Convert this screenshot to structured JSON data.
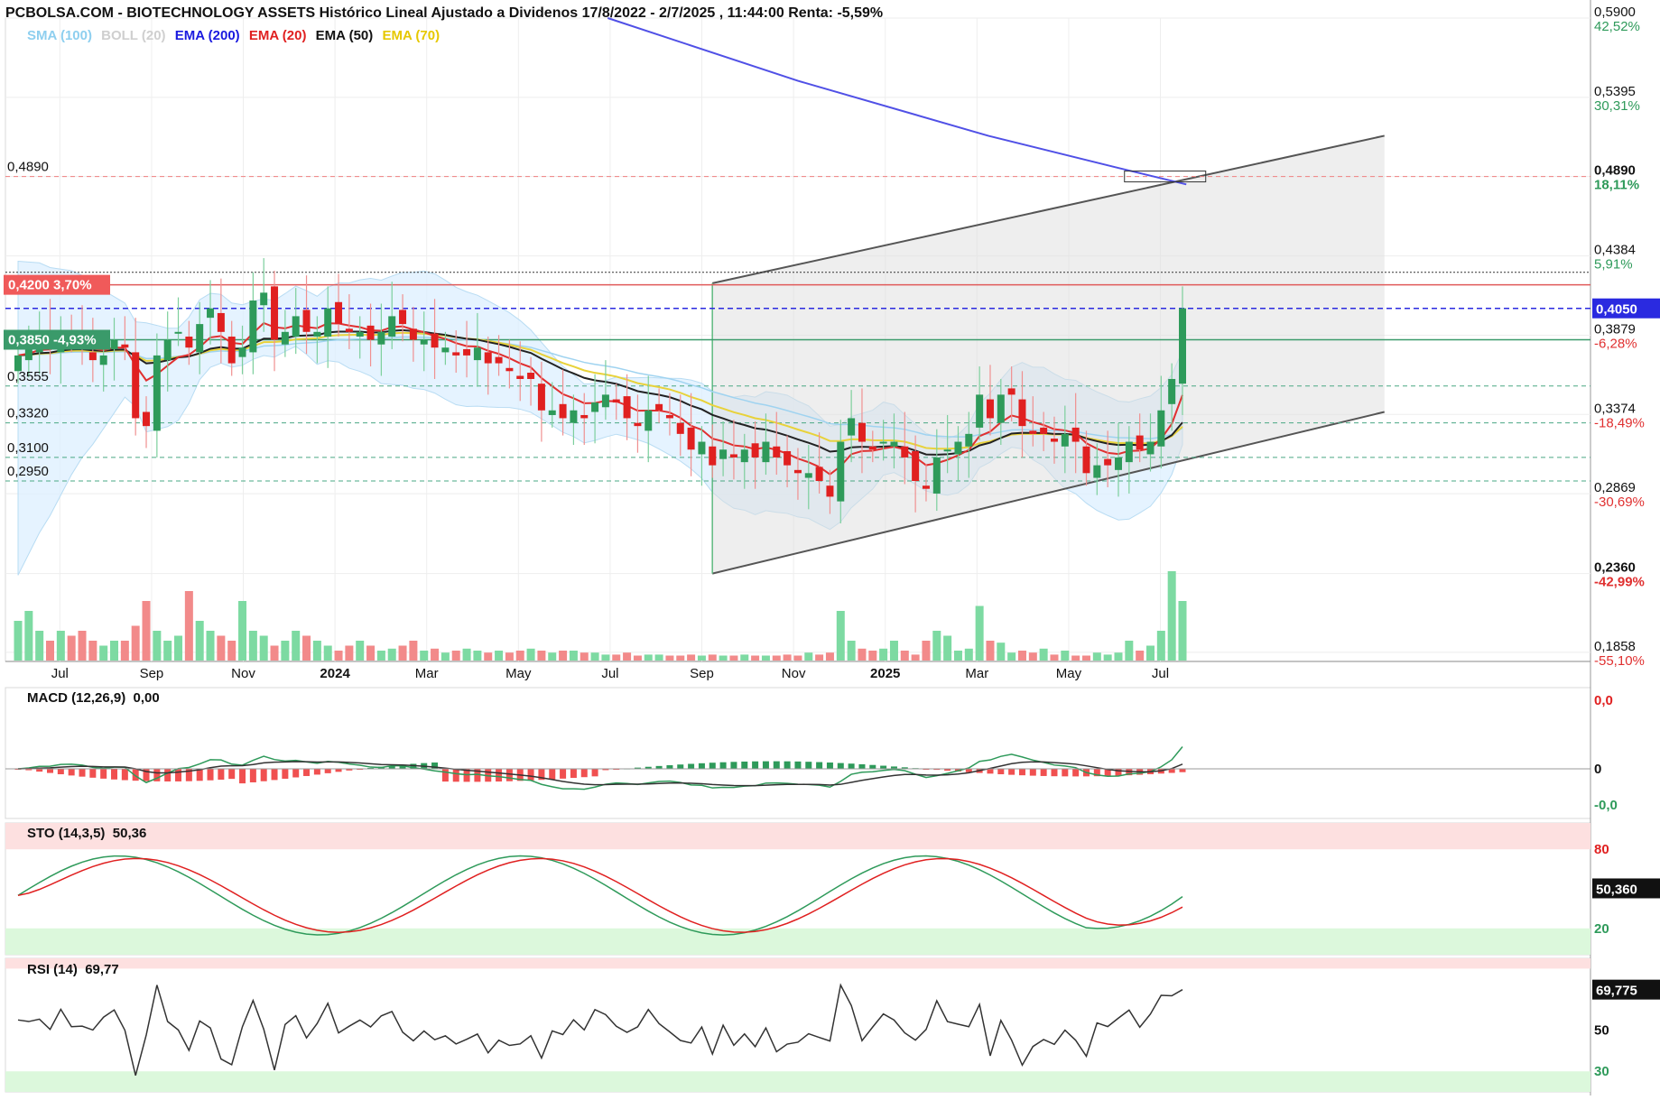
{
  "header": {
    "title": "PCBOLSA.COM - BIOTECHNOLOGY ASSETS Histórico Lineal Ajustado a Dividenos 17/8/2022 - 2/7/2025 , 11:44:00 Renta: -5,59%"
  },
  "legend": [
    {
      "label": "SMA (100)",
      "color": "#8ecfef"
    },
    {
      "label": "BOLL (20)",
      "color": "#cfcfcf"
    },
    {
      "label": "EMA (200)",
      "color": "#1a1adf"
    },
    {
      "label": "EMA (20)",
      "color": "#e02020"
    },
    {
      "label": "EMA (50)",
      "color": "#111111"
    },
    {
      "label": "EMA (70)",
      "color": "#e6c800"
    }
  ],
  "price_axis": [
    {
      "price": "0,5900",
      "pct": "42,52%",
      "pct_color": "#2e9a5a"
    },
    {
      "price": "0,5395",
      "pct": "30,31%",
      "pct_color": "#2e9a5a"
    },
    {
      "price": "0,4890",
      "pct": "18,11%",
      "pct_color": "#2e9a5a",
      "bold": true
    },
    {
      "price": "0,4384",
      "pct": "5,91%",
      "pct_color": "#2e9a5a"
    },
    {
      "price": "0,3879",
      "pct": "-6,28%",
      "pct_color": "#e03030"
    },
    {
      "price": "0,3374",
      "pct": "-18,49%",
      "pct_color": "#e03030"
    },
    {
      "price": "0,2869",
      "pct": "-30,69%",
      "pct_color": "#e03030"
    },
    {
      "price": "0,2360",
      "pct": "-42,99%",
      "pct_color": "#e03030",
      "bold": true
    },
    {
      "price": "0,1858",
      "pct": "-55,10%",
      "pct_color": "#e03030"
    }
  ],
  "current_price": {
    "label": "0,4050"
  },
  "level_labels": [
    {
      "text": "0,4890",
      "price": 0.489
    },
    {
      "text": "0,3555",
      "price": 0.3555
    },
    {
      "text": "0,3320",
      "price": 0.332
    },
    {
      "text": "0,3100",
      "price": 0.31
    },
    {
      "text": "0,2950",
      "price": 0.295
    }
  ],
  "flags": [
    {
      "text": "0,4200  3,70%",
      "price": 0.42,
      "color": "#f05a5a"
    },
    {
      "text": "0,3850  -4,93%",
      "price": 0.385,
      "color": "#3a9a6a"
    }
  ],
  "time_axis": [
    {
      "label": "Jul",
      "bold": false
    },
    {
      "label": "Sep",
      "bold": false
    },
    {
      "label": "Nov",
      "bold": false
    },
    {
      "label": "2024",
      "bold": true
    },
    {
      "label": "Mar",
      "bold": false
    },
    {
      "label": "May",
      "bold": false
    },
    {
      "label": "Jul",
      "bold": false
    },
    {
      "label": "Sep",
      "bold": false
    },
    {
      "label": "Nov",
      "bold": false
    },
    {
      "label": "2025",
      "bold": true
    },
    {
      "label": "Mar",
      "bold": false
    },
    {
      "label": "May",
      "bold": false
    },
    {
      "label": "Jul",
      "bold": false
    }
  ],
  "macd": {
    "label": "MACD (12,26,9)",
    "value": "0,00",
    "axis": [
      "0,0",
      "0",
      "-0,0"
    ]
  },
  "sto": {
    "label": "STO (14,3,5)",
    "value": "50,36",
    "axis": [
      "80",
      "20"
    ],
    "current": "50,360"
  },
  "rsi": {
    "label": "RSI (14)",
    "value": "69,77",
    "axis": [
      "50",
      "30"
    ],
    "current": "69,775"
  },
  "chart_data": {
    "type": "candlestick",
    "title": "PCBOLSA.COM - BIOTECHNOLOGY ASSETS Histórico Lineal Ajustado a Dividenos 17/8/2022 - 2/7/2025 , 11:44:00 Renta: -5,59%",
    "x_range": [
      "2023-06",
      "2025-07"
    ],
    "y_range": [
      0.18,
      0.59
    ],
    "close_series_weekly": [
      0.375,
      0.38,
      0.385,
      0.38,
      0.39,
      0.385,
      0.38,
      0.372,
      0.375,
      0.385,
      0.38,
      0.335,
      0.33,
      0.375,
      0.385,
      0.39,
      0.38,
      0.395,
      0.405,
      0.39,
      0.37,
      0.38,
      0.41,
      0.415,
      0.385,
      0.39,
      0.4,
      0.39,
      0.39,
      0.405,
      0.395,
      0.39,
      0.39,
      0.385,
      0.39,
      0.4,
      0.395,
      0.385,
      0.385,
      0.38,
      0.38,
      0.375,
      0.375,
      0.38,
      0.37,
      0.37,
      0.365,
      0.36,
      0.36,
      0.34,
      0.34,
      0.335,
      0.34,
      0.335,
      0.345,
      0.35,
      0.345,
      0.335,
      0.33,
      0.34,
      0.34,
      0.335,
      0.325,
      0.315,
      0.32,
      0.305,
      0.315,
      0.31,
      0.315,
      0.31,
      0.32,
      0.31,
      0.305,
      0.3,
      0.3,
      0.295,
      0.285,
      0.32,
      0.335,
      0.32,
      0.315,
      0.32,
      0.32,
      0.31,
      0.295,
      0.29,
      0.31,
      0.315,
      0.32,
      0.325,
      0.35,
      0.335,
      0.35,
      0.35,
      0.33,
      0.325,
      0.325,
      0.32,
      0.325,
      0.32,
      0.3,
      0.305,
      0.305,
      0.31,
      0.32,
      0.315,
      0.32,
      0.34,
      0.36,
      0.405
    ],
    "volume_relative": [
      0.4,
      0.5,
      0.3,
      0.2,
      0.3,
      0.25,
      0.3,
      0.2,
      0.15,
      0.2,
      0.2,
      0.35,
      0.6,
      0.3,
      0.2,
      0.25,
      0.7,
      0.4,
      0.3,
      0.25,
      0.2,
      0.6,
      0.3,
      0.25,
      0.15,
      0.2,
      0.3,
      0.25,
      0.2,
      0.15,
      0.1,
      0.15,
      0.2,
      0.15,
      0.1,
      0.12,
      0.15,
      0.2,
      0.1,
      0.12,
      0.08,
      0.1,
      0.12,
      0.1,
      0.08,
      0.1,
      0.08,
      0.1,
      0.12,
      0.1,
      0.08,
      0.1,
      0.1,
      0.08,
      0.08,
      0.06,
      0.06,
      0.08,
      0.05,
      0.06,
      0.06,
      0.05,
      0.05,
      0.06,
      0.05,
      0.06,
      0.05,
      0.05,
      0.06,
      0.05,
      0.05,
      0.05,
      0.06,
      0.05,
      0.08,
      0.06,
      0.08,
      0.5,
      0.2,
      0.12,
      0.1,
      0.12,
      0.2,
      0.1,
      0.06,
      0.2,
      0.3,
      0.25,
      0.1,
      0.12,
      0.55,
      0.2,
      0.18,
      0.08,
      0.1,
      0.08,
      0.12,
      0.06,
      0.1,
      0.05,
      0.05,
      0.08,
      0.06,
      0.08,
      0.2,
      0.1,
      0.15,
      0.3,
      0.9,
      0.6
    ],
    "levels": [
      0.489,
      0.42,
      0.405,
      0.385,
      0.3555,
      0.332,
      0.31,
      0.295
    ],
    "ema200_points": [
      [
        0.38,
        0.59
      ],
      [
        0.5,
        0.55
      ],
      [
        0.62,
        0.515
      ],
      [
        0.7,
        0.495
      ],
      [
        0.745,
        0.484
      ]
    ],
    "channel": {
      "upper": [
        [
          0.446,
          0.421
        ],
        [
          0.87,
          0.515
        ]
      ],
      "lower": [
        [
          0.446,
          0.236
        ],
        [
          0.87,
          0.339
        ]
      ]
    },
    "macd_axis": [
      "0,0",
      "0",
      "-0,0"
    ],
    "sto_levels": [
      80,
      20
    ],
    "rsi_levels": [
      70,
      30
    ]
  }
}
